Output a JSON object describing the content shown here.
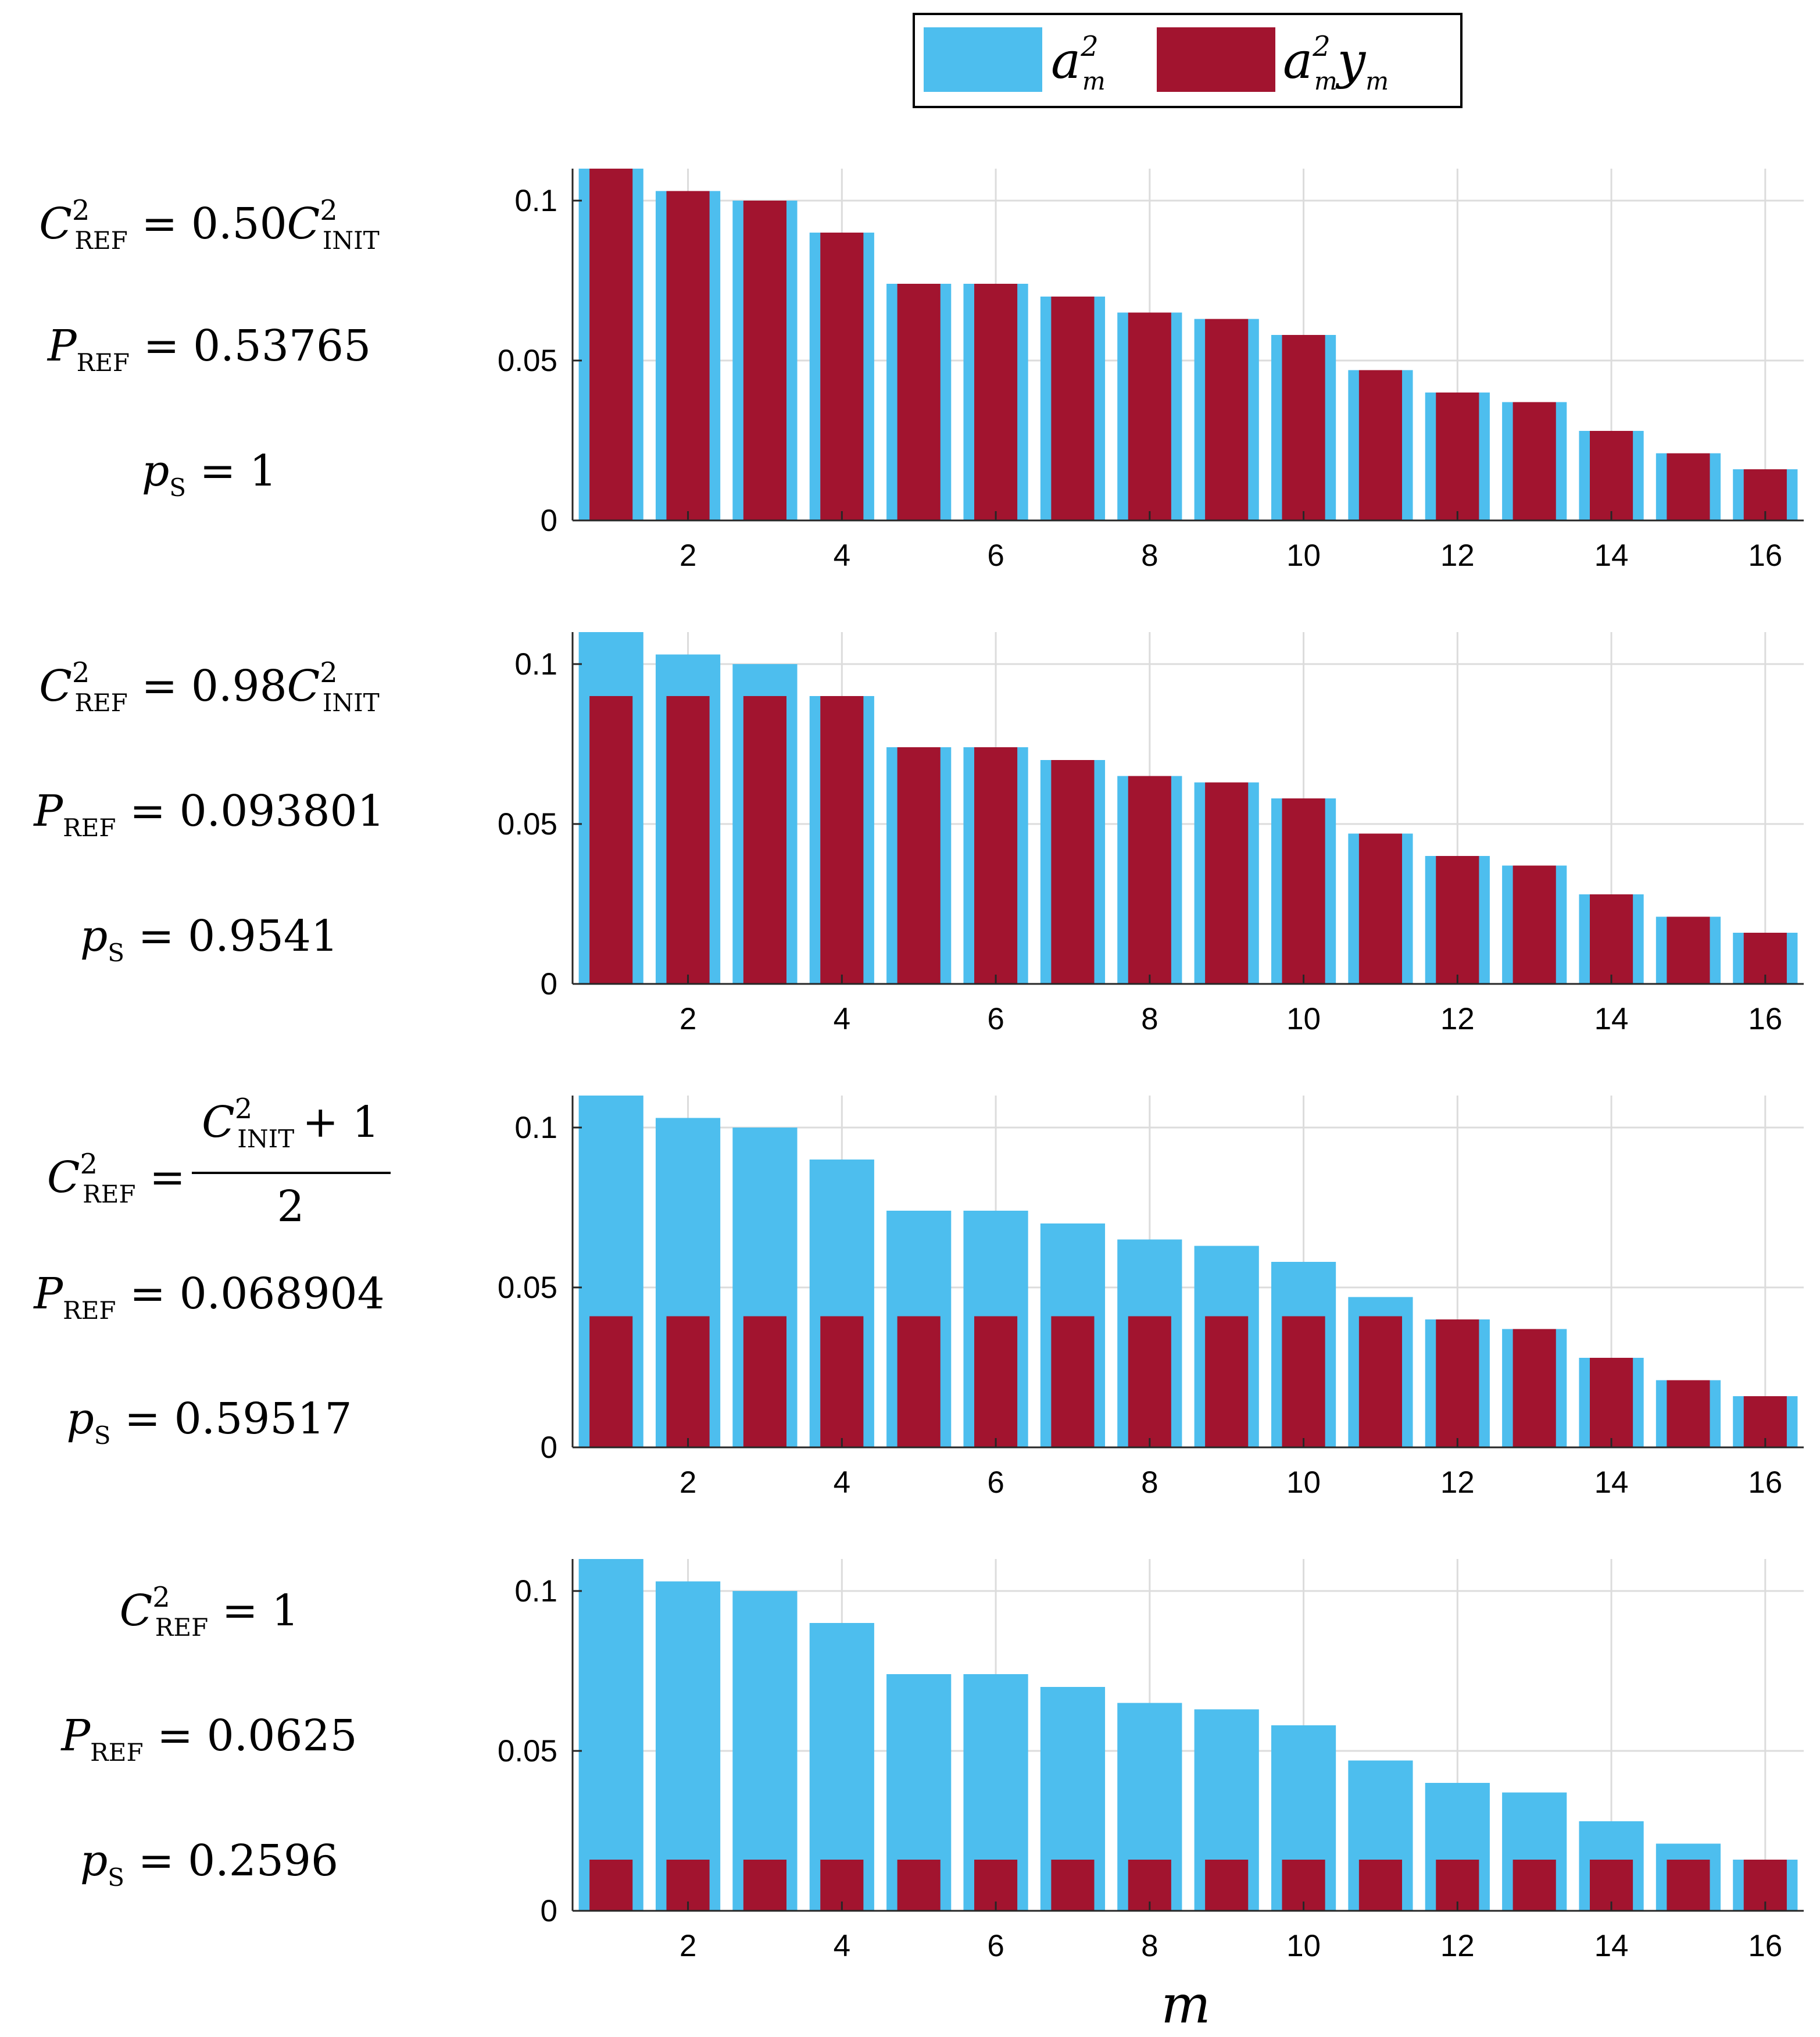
{
  "figure": {
    "xlabel": "m",
    "legend": [
      {
        "base": "a",
        "sup": "2",
        "sub": "m",
        "extra_base": "",
        "extra_sub": "",
        "color": "#4DBEEE"
      },
      {
        "base": "a",
        "sup": "2",
        "sub": "m",
        "extra_base": "y",
        "extra_sub": "m",
        "color": "#A2142F"
      }
    ]
  },
  "panels": [
    {
      "eqs": [
        {
          "type": "ratio",
          "lhs_sym": "C",
          "lhs_sup": "2",
          "lhs_sub": "REF",
          "coef": "0.50",
          "rhs_sym": "C",
          "rhs_sup": "2",
          "rhs_sub": "INIT"
        },
        {
          "type": "value",
          "sym": "P",
          "sub": "REF",
          "value": "0.53765"
        },
        {
          "type": "value",
          "sym": "p",
          "sub": "S",
          "value": "1"
        }
      ]
    },
    {
      "eqs": [
        {
          "type": "ratio",
          "lhs_sym": "C",
          "lhs_sup": "2",
          "lhs_sub": "REF",
          "coef": "0.98",
          "rhs_sym": "C",
          "rhs_sup": "2",
          "rhs_sub": "INIT"
        },
        {
          "type": "value",
          "sym": "P",
          "sub": "REF",
          "value": "0.093801"
        },
        {
          "type": "value",
          "sym": "p",
          "sub": "S",
          "value": "0.9541"
        }
      ]
    },
    {
      "eqs": [
        {
          "type": "fraction",
          "lhs_sym": "C",
          "lhs_sup": "2",
          "lhs_sub": "REF",
          "num_sym": "C",
          "num_sup": "2",
          "num_sub": "INIT",
          "num_extra": "+ 1",
          "den": "2"
        },
        {
          "type": "value",
          "sym": "P",
          "sub": "REF",
          "value": "0.068904"
        },
        {
          "type": "value",
          "sym": "p",
          "sub": "S",
          "value": "0.59517"
        }
      ]
    },
    {
      "eqs": [
        {
          "type": "value",
          "sym": "C",
          "sup": "2",
          "sub": "REF",
          "value": "1"
        },
        {
          "type": "value",
          "sym": "P",
          "sub": "REF",
          "value": "0.0625"
        },
        {
          "type": "value",
          "sym": "p",
          "sub": "S",
          "value": "0.2596"
        }
      ]
    }
  ],
  "chart_data": [
    {
      "type": "bar",
      "categories": [
        1,
        2,
        3,
        4,
        5,
        6,
        7,
        8,
        9,
        10,
        11,
        12,
        13,
        14,
        15,
        16
      ],
      "series": [
        {
          "name": "a_m^2",
          "color": "#4DBEEE",
          "values": [
            0.11,
            0.103,
            0.1,
            0.09,
            0.074,
            0.074,
            0.07,
            0.065,
            0.063,
            0.058,
            0.047,
            0.04,
            0.037,
            0.028,
            0.021,
            0.016
          ]
        },
        {
          "name": "a_m^2 y_m",
          "color": "#A2142F",
          "values": [
            0.11,
            0.103,
            0.1,
            0.09,
            0.074,
            0.074,
            0.07,
            0.065,
            0.063,
            0.058,
            0.047,
            0.04,
            0.037,
            0.028,
            0.021,
            0.016
          ]
        }
      ],
      "xticks": [
        2,
        4,
        6,
        8,
        10,
        12,
        14,
        16
      ],
      "yticks": [
        0,
        0.05,
        0.1
      ],
      "ytick_labels": [
        "0",
        "0.05",
        "0.1"
      ],
      "xlim": [
        0.5,
        16.5
      ],
      "ylim": [
        0,
        0.11
      ],
      "grid": true
    },
    {
      "type": "bar",
      "categories": [
        1,
        2,
        3,
        4,
        5,
        6,
        7,
        8,
        9,
        10,
        11,
        12,
        13,
        14,
        15,
        16
      ],
      "series": [
        {
          "name": "a_m^2",
          "color": "#4DBEEE",
          "values": [
            0.11,
            0.103,
            0.1,
            0.09,
            0.074,
            0.074,
            0.07,
            0.065,
            0.063,
            0.058,
            0.047,
            0.04,
            0.037,
            0.028,
            0.021,
            0.016
          ]
        },
        {
          "name": "a_m^2 y_m",
          "color": "#A2142F",
          "values": [
            0.09,
            0.09,
            0.09,
            0.09,
            0.074,
            0.074,
            0.07,
            0.065,
            0.063,
            0.058,
            0.047,
            0.04,
            0.037,
            0.028,
            0.021,
            0.016
          ]
        }
      ],
      "xticks": [
        2,
        4,
        6,
        8,
        10,
        12,
        14,
        16
      ],
      "yticks": [
        0,
        0.05,
        0.1
      ],
      "ytick_labels": [
        "0",
        "0.05",
        "0.1"
      ],
      "xlim": [
        0.5,
        16.5
      ],
      "ylim": [
        0,
        0.11
      ],
      "grid": true
    },
    {
      "type": "bar",
      "categories": [
        1,
        2,
        3,
        4,
        5,
        6,
        7,
        8,
        9,
        10,
        11,
        12,
        13,
        14,
        15,
        16
      ],
      "series": [
        {
          "name": "a_m^2",
          "color": "#4DBEEE",
          "values": [
            0.11,
            0.103,
            0.1,
            0.09,
            0.074,
            0.074,
            0.07,
            0.065,
            0.063,
            0.058,
            0.047,
            0.04,
            0.037,
            0.028,
            0.021,
            0.016
          ]
        },
        {
          "name": "a_m^2 y_m",
          "color": "#A2142F",
          "values": [
            0.041,
            0.041,
            0.041,
            0.041,
            0.041,
            0.041,
            0.041,
            0.041,
            0.041,
            0.041,
            0.041,
            0.04,
            0.037,
            0.028,
            0.021,
            0.016
          ]
        }
      ],
      "xticks": [
        2,
        4,
        6,
        8,
        10,
        12,
        14,
        16
      ],
      "yticks": [
        0,
        0.05,
        0.1
      ],
      "ytick_labels": [
        "0",
        "0.05",
        "0.1"
      ],
      "xlim": [
        0.5,
        16.5
      ],
      "ylim": [
        0,
        0.11
      ],
      "grid": true
    },
    {
      "type": "bar",
      "categories": [
        1,
        2,
        3,
        4,
        5,
        6,
        7,
        8,
        9,
        10,
        11,
        12,
        13,
        14,
        15,
        16
      ],
      "series": [
        {
          "name": "a_m^2",
          "color": "#4DBEEE",
          "values": [
            0.11,
            0.103,
            0.1,
            0.09,
            0.074,
            0.074,
            0.07,
            0.065,
            0.063,
            0.058,
            0.047,
            0.04,
            0.037,
            0.028,
            0.021,
            0.016
          ]
        },
        {
          "name": "a_m^2 y_m",
          "color": "#A2142F",
          "values": [
            0.016,
            0.016,
            0.016,
            0.016,
            0.016,
            0.016,
            0.016,
            0.016,
            0.016,
            0.016,
            0.016,
            0.016,
            0.016,
            0.016,
            0.016,
            0.016
          ]
        }
      ],
      "xticks": [
        2,
        4,
        6,
        8,
        10,
        12,
        14,
        16
      ],
      "yticks": [
        0,
        0.05,
        0.1
      ],
      "ytick_labels": [
        "0",
        "0.05",
        "0.1"
      ],
      "xlim": [
        0.5,
        16.5
      ],
      "ylim": [
        0,
        0.11
      ],
      "grid": true
    }
  ]
}
